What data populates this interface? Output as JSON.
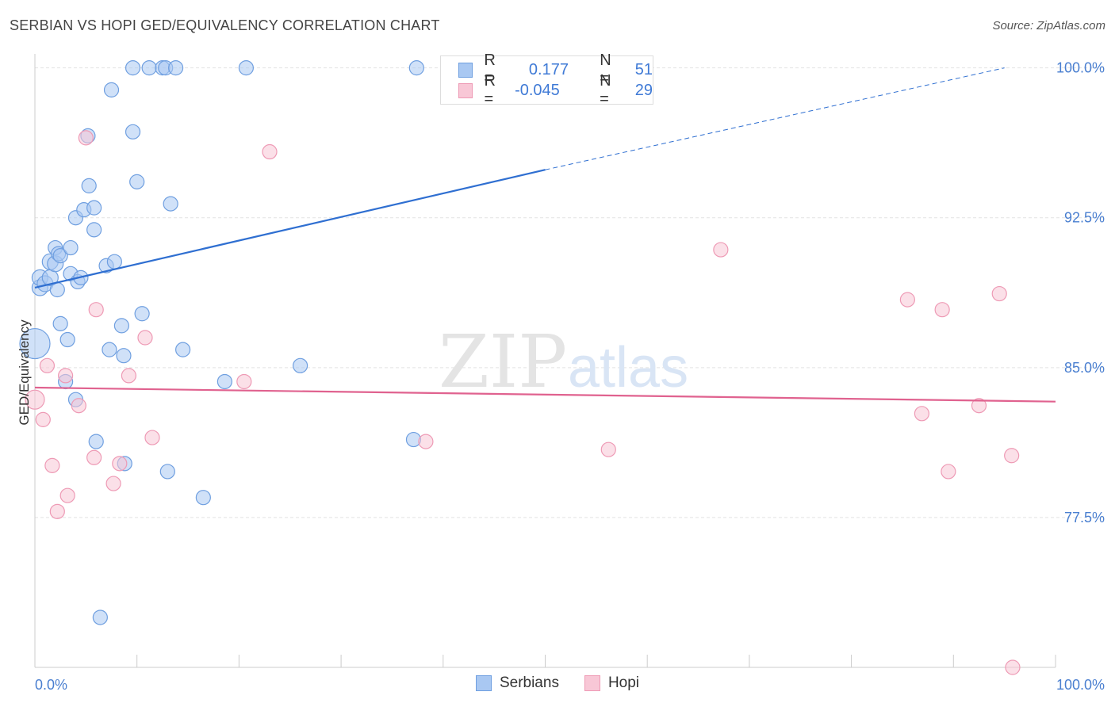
{
  "header": {
    "title": "SERBIAN VS HOPI GED/EQUIVALENCY CORRELATION CHART",
    "source": "Source: ZipAtlas.com"
  },
  "legend": {
    "rows": [
      {
        "r_label": "R =",
        "r_value": "0.177",
        "n_label": "N =",
        "n_value": "51",
        "color": "#a9c8f2",
        "stroke": "#6f9fe0"
      },
      {
        "r_label": "R =",
        "r_value": "-0.045",
        "n_label": "N =",
        "n_value": "29",
        "color": "#f8c7d6",
        "stroke": "#ee9ab5"
      }
    ]
  },
  "bottom_legend": [
    {
      "label": "Serbians",
      "color": "#a9c8f2",
      "stroke": "#6f9fe0"
    },
    {
      "label": "Hopi",
      "color": "#f8c7d6",
      "stroke": "#ee9ab5"
    }
  ],
  "watermark": {
    "zip": "ZIP",
    "atlas": "atlas"
  },
  "chart_data": {
    "type": "scatter",
    "title": "SERBIAN VS HOPI GED/EQUIVALENCY CORRELATION CHART",
    "xlabel": "",
    "ylabel": "GED/Equivalency",
    "xlim": [
      0,
      100
    ],
    "ylim": [
      70.0,
      100.7
    ],
    "x_tick_labels": [
      "0.0%",
      "100.0%"
    ],
    "y_ticks": [
      77.5,
      85.0,
      92.5,
      100.0
    ],
    "y_tick_labels": [
      "77.5%",
      "85.0%",
      "92.5%",
      "100.0%"
    ],
    "grid": true,
    "series": [
      {
        "name": "Serbians",
        "color": "#a9c8f2",
        "stroke": "#6f9fe0",
        "trend": {
          "x0": 0,
          "y0": 89.0,
          "x1": 50,
          "y1": 94.9,
          "dashed_to_x": 95,
          "dashed_to_y": 100.0,
          "color": "#2f6fd1"
        },
        "points": [
          [
            0.5,
            89.0,
            10
          ],
          [
            0.5,
            89.5,
            10
          ],
          [
            1.5,
            90.3,
            10
          ],
          [
            1.0,
            89.2,
            10
          ],
          [
            1.5,
            89.5,
            10
          ],
          [
            2.0,
            90.2,
            10
          ],
          [
            2.2,
            88.9,
            9
          ],
          [
            2.0,
            91.0,
            9
          ],
          [
            2.3,
            90.7,
            9
          ],
          [
            2.5,
            87.2,
            9
          ],
          [
            2.5,
            90.6,
            9
          ],
          [
            3.2,
            86.4,
            9
          ],
          [
            3.0,
            84.3,
            9
          ],
          [
            3.5,
            91.0,
            9
          ],
          [
            3.5,
            89.7,
            9
          ],
          [
            4.0,
            83.4,
            9
          ],
          [
            4.0,
            92.5,
            9
          ],
          [
            4.2,
            89.3,
            9
          ],
          [
            4.5,
            89.5,
            9
          ],
          [
            4.8,
            92.9,
            9
          ],
          [
            5.2,
            96.6,
            9
          ],
          [
            5.3,
            94.1,
            9
          ],
          [
            5.8,
            93.0,
            9
          ],
          [
            5.8,
            91.9,
            9
          ],
          [
            6.0,
            81.3,
            9
          ],
          [
            6.4,
            72.5,
            9
          ],
          [
            7.0,
            90.1,
            9
          ],
          [
            7.3,
            85.9,
            9
          ],
          [
            7.5,
            98.9,
            9
          ],
          [
            7.8,
            90.3,
            9
          ],
          [
            8.5,
            87.1,
            9
          ],
          [
            8.7,
            85.6,
            9
          ],
          [
            8.8,
            80.2,
            9
          ],
          [
            9.6,
            100.0,
            9
          ],
          [
            9.6,
            96.8,
            9
          ],
          [
            10.0,
            94.3,
            9
          ],
          [
            10.5,
            87.7,
            9
          ],
          [
            11.2,
            100.0,
            9
          ],
          [
            12.5,
            100.0,
            9
          ],
          [
            12.8,
            100.0,
            9
          ],
          [
            13.0,
            79.8,
            9
          ],
          [
            13.3,
            93.2,
            9
          ],
          [
            13.8,
            100.0,
            9
          ],
          [
            14.5,
            85.9,
            9
          ],
          [
            16.5,
            78.5,
            9
          ],
          [
            18.6,
            84.3,
            9
          ],
          [
            20.7,
            100.0,
            9
          ],
          [
            26.0,
            85.1,
            9
          ],
          [
            37.4,
            100.0,
            9
          ],
          [
            37.1,
            81.4,
            9
          ],
          [
            0.0,
            86.2,
            19
          ]
        ]
      },
      {
        "name": "Hopi",
        "color": "#f8c7d6",
        "stroke": "#ee9ab5",
        "trend": {
          "x0": 0,
          "y0": 84.0,
          "x1": 100,
          "y1": 83.3,
          "color": "#e0628f"
        },
        "points": [
          [
            0.0,
            83.4,
            12
          ],
          [
            0.8,
            82.4,
            9
          ],
          [
            1.2,
            85.1,
            9
          ],
          [
            1.7,
            80.1,
            9
          ],
          [
            2.2,
            77.8,
            9
          ],
          [
            3.0,
            84.6,
            9
          ],
          [
            3.2,
            78.6,
            9
          ],
          [
            4.3,
            83.1,
            9
          ],
          [
            5.0,
            96.5,
            9
          ],
          [
            5.8,
            80.5,
            9
          ],
          [
            6.0,
            87.9,
            9
          ],
          [
            7.7,
            79.2,
            9
          ],
          [
            8.3,
            80.2,
            9
          ],
          [
            9.2,
            84.6,
            9
          ],
          [
            10.8,
            86.5,
            9
          ],
          [
            11.5,
            81.5,
            9
          ],
          [
            20.5,
            84.3,
            9
          ],
          [
            23.0,
            95.8,
            9
          ],
          [
            38.3,
            81.3,
            9
          ],
          [
            56.2,
            80.9,
            9
          ],
          [
            67.2,
            90.9,
            9
          ],
          [
            85.5,
            88.4,
            9
          ],
          [
            86.9,
            82.7,
            9
          ],
          [
            88.9,
            87.9,
            9
          ],
          [
            89.5,
            79.8,
            9
          ],
          [
            92.5,
            83.1,
            9
          ],
          [
            94.5,
            88.7,
            9
          ],
          [
            95.7,
            80.6,
            9
          ],
          [
            95.8,
            70.0,
            9
          ]
        ]
      }
    ]
  }
}
